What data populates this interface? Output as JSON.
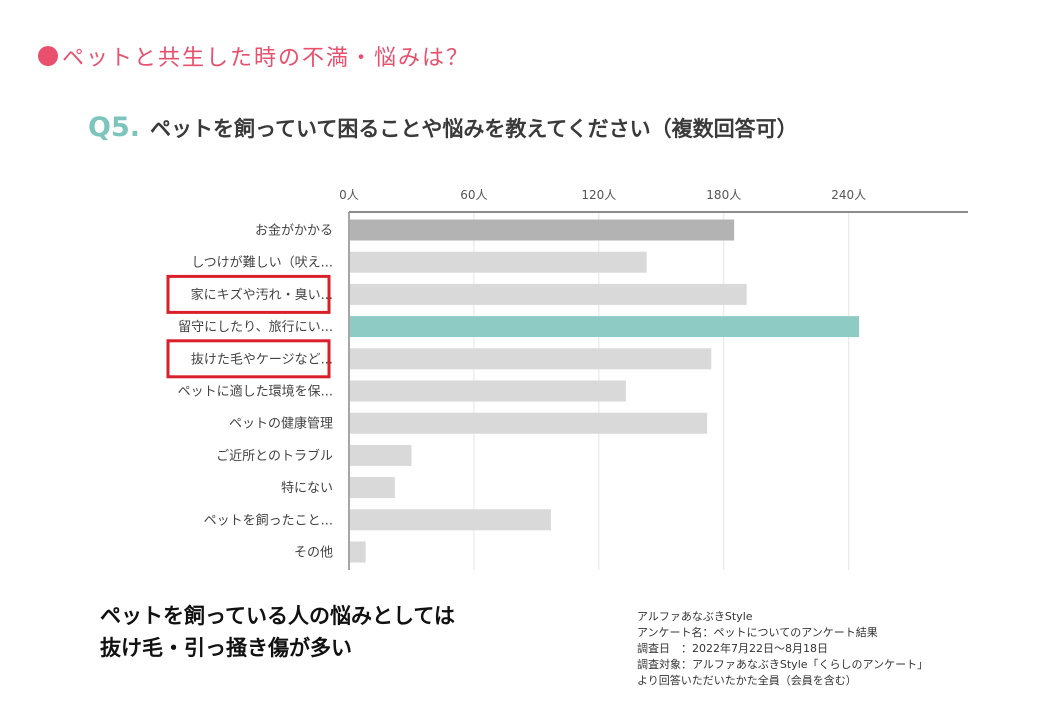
{
  "header": {
    "title": "ペットと共生した時の不満・悩みは？",
    "accent_color": "#e8506e"
  },
  "question": {
    "number": "Q5.",
    "text": "ペットを飼っていて困ることや悩みを教えてください（複数回答可）",
    "number_color": "#7cc4bc"
  },
  "chart_data": {
    "type": "bar",
    "orientation": "horizontal",
    "categories": [
      "お金がかかる",
      "しつけが難しい（吠え...",
      "家にキズや汚れ・臭い...",
      "留守にしたり、旅行にい...",
      "抜けた毛やケージなど...",
      "ペットに適した環境を保...",
      "ペットの健康管理",
      "ご近所とのトラブル",
      "特にない",
      "ペットを飼ったこと...",
      "その他"
    ],
    "values": [
      185,
      143,
      191,
      245,
      174,
      133,
      172,
      30,
      22,
      97,
      8
    ],
    "xlim": [
      0,
      300
    ],
    "ticks": [
      0,
      60,
      120,
      180,
      240
    ],
    "tick_labels": [
      "0人",
      "60人",
      "120人",
      "180人",
      "240人"
    ],
    "grid": true,
    "colors": {
      "default": "#d9d9d9",
      "first": "#b3b3b3",
      "highlight": "#8ecbc4",
      "highlight_boxes": "#d9202a"
    },
    "emphasis": {
      "darker_bar_index": 0,
      "highlight_bar_index": 3,
      "boxed_label_indices": [
        2,
        4
      ]
    }
  },
  "conclusion": {
    "line1": "ペットを飼っている人の悩みとしては",
    "line2": "抜け毛・引っ掻き傷が多い"
  },
  "source": {
    "line1": "アルファあなぶきStyle",
    "line2": "アンケート名：ペットについてのアンケート結果",
    "line3": "調査日　：2022年7月22日～8月18日",
    "line4": "調査対象：アルファあなぶきStyle「くらしのアンケート」",
    "line5": "より回答いただいたかた全員（会員を含む）"
  }
}
